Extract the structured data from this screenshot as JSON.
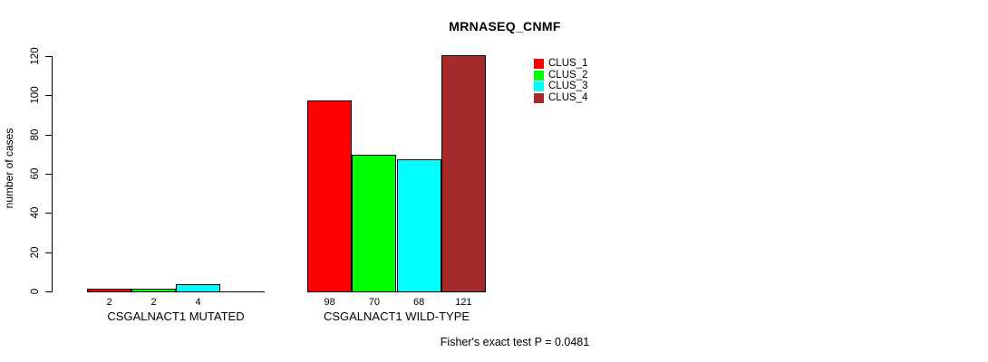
{
  "chart_data": {
    "type": "bar",
    "title": "MRNASEQ_CNMF",
    "ylabel": "number of cases",
    "xlabel": "",
    "note": "Fisher's exact test P = 0.0481",
    "ylim": [
      0,
      120
    ],
    "yticks": [
      0,
      20,
      40,
      60,
      80,
      100,
      120
    ],
    "grid": false,
    "categories": [
      "CSGALNACT1 MUTATED",
      "CSGALNACT1 WILD-TYPE"
    ],
    "series": [
      {
        "name": "CLUS_1",
        "values": [
          2,
          98
        ]
      },
      {
        "name": "CLUS_2",
        "values": [
          2,
          70
        ]
      },
      {
        "name": "CLUS_3",
        "values": [
          4,
          68
        ]
      },
      {
        "name": "CLUS_4",
        "values": [
          0,
          121
        ]
      }
    ],
    "bar_labels": [
      [
        "2",
        "2",
        "4",
        ""
      ],
      [
        "98",
        "70",
        "68",
        "121"
      ]
    ],
    "colors": [
      "#FF0000",
      "#00FF00",
      "#00FFFF",
      "#A52A2A"
    ],
    "legend": {
      "position": "top-right",
      "items": [
        {
          "name": "CLUS_1",
          "color": "#FF0000"
        },
        {
          "name": "CLUS_2",
          "color": "#00FF00"
        },
        {
          "name": "CLUS_3",
          "color": "#00FFFF"
        },
        {
          "name": "CLUS_4",
          "color": "#A52A2A"
        }
      ]
    }
  }
}
